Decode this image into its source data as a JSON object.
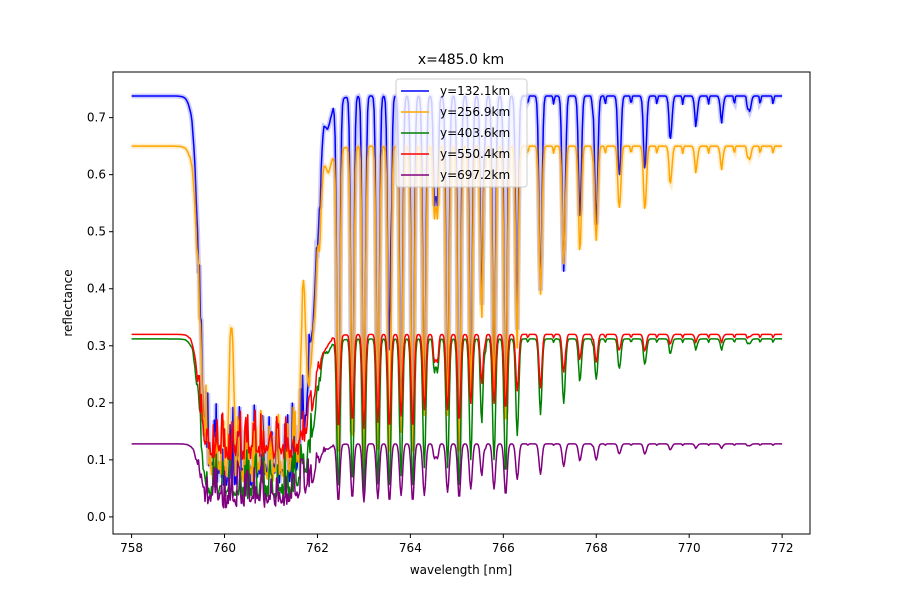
{
  "chart_data": {
    "type": "line",
    "title": "x=485.0 km",
    "xlabel": "wavelength [nm]",
    "ylabel": "reflectance",
    "xlim": [
      757.6,
      772.6
    ],
    "ylim": [
      -0.03,
      0.78
    ],
    "xticks": [
      758,
      760,
      762,
      764,
      766,
      768,
      770,
      772
    ],
    "yticks": [
      0.0,
      0.1,
      0.2,
      0.3,
      0.4,
      0.5,
      0.6,
      0.7
    ],
    "grid": false,
    "legend_position": "top-center",
    "x_start": 758.0,
    "x_end": 772.0,
    "band_start": 759.45,
    "band_end": 761.6,
    "series": [
      {
        "name": "y=132.1km",
        "color": "#0000ff",
        "continuum": 0.738,
        "band_floor": 0.055,
        "peaks": [
          {
            "x": 762.15,
            "y": 0.69
          },
          {
            "x": 763.1,
            "y": 0.5
          },
          {
            "x": 763.6,
            "y": 0.52
          },
          {
            "x": 764.55,
            "y": 0.62
          },
          {
            "x": 765.6,
            "y": 0.66
          },
          {
            "x": 766.4,
            "y": 0.73
          }
        ],
        "lines": [
          {
            "x": 762.45,
            "depth": 0.95
          },
          {
            "x": 762.75,
            "depth": 0.9
          },
          {
            "x": 763.0,
            "depth": 0.95
          },
          {
            "x": 763.3,
            "depth": 0.9
          },
          {
            "x": 763.55,
            "depth": 0.95
          },
          {
            "x": 763.8,
            "depth": 0.85
          },
          {
            "x": 764.05,
            "depth": 0.95
          },
          {
            "x": 764.3,
            "depth": 0.8
          },
          {
            "x": 764.55,
            "depth": 0.95
          },
          {
            "x": 764.8,
            "depth": 0.8
          },
          {
            "x": 765.05,
            "depth": 0.95
          },
          {
            "x": 765.3,
            "depth": 0.75
          },
          {
            "x": 765.55,
            "depth": 0.9
          },
          {
            "x": 765.8,
            "depth": 0.75
          },
          {
            "x": 766.05,
            "depth": 0.85
          },
          {
            "x": 766.3,
            "depth": 0.6
          },
          {
            "x": 766.8,
            "depth": 0.48
          },
          {
            "x": 767.3,
            "depth": 0.45
          },
          {
            "x": 767.65,
            "depth": 0.3
          },
          {
            "x": 768.0,
            "depth": 0.33
          },
          {
            "x": 768.5,
            "depth": 0.2
          },
          {
            "x": 769.05,
            "depth": 0.18
          },
          {
            "x": 769.6,
            "depth": 0.1
          },
          {
            "x": 770.15,
            "depth": 0.06
          },
          {
            "x": 770.7,
            "depth": 0.05
          },
          {
            "x": 771.3,
            "depth": 0.04
          }
        ]
      },
      {
        "name": "y=256.9km",
        "color": "#ffa500",
        "continuum": 0.65,
        "band_floor": 0.06,
        "peaks": [
          {
            "x": 760.15,
            "y": 0.36
          },
          {
            "x": 761.7,
            "y": 0.44
          },
          {
            "x": 762.15,
            "y": 0.62
          },
          {
            "x": 763.1,
            "y": 0.49
          },
          {
            "x": 764.55,
            "y": 0.6
          },
          {
            "x": 765.6,
            "y": 0.62
          },
          {
            "x": 766.4,
            "y": 0.64
          }
        ],
        "lines": [
          {
            "x": 762.45,
            "depth": 0.95
          },
          {
            "x": 762.75,
            "depth": 0.9
          },
          {
            "x": 763.0,
            "depth": 0.95
          },
          {
            "x": 763.3,
            "depth": 0.9
          },
          {
            "x": 763.55,
            "depth": 0.95
          },
          {
            "x": 763.8,
            "depth": 0.85
          },
          {
            "x": 764.05,
            "depth": 0.95
          },
          {
            "x": 764.3,
            "depth": 0.8
          },
          {
            "x": 764.55,
            "depth": 0.95
          },
          {
            "x": 764.8,
            "depth": 0.8
          },
          {
            "x": 765.05,
            "depth": 0.95
          },
          {
            "x": 765.3,
            "depth": 0.75
          },
          {
            "x": 765.55,
            "depth": 0.9
          },
          {
            "x": 765.8,
            "depth": 0.75
          },
          {
            "x": 766.05,
            "depth": 0.85
          },
          {
            "x": 766.3,
            "depth": 0.6
          },
          {
            "x": 766.8,
            "depth": 0.42
          },
          {
            "x": 767.3,
            "depth": 0.35
          },
          {
            "x": 767.65,
            "depth": 0.3
          },
          {
            "x": 768.0,
            "depth": 0.28
          },
          {
            "x": 768.5,
            "depth": 0.18
          },
          {
            "x": 769.05,
            "depth": 0.18
          },
          {
            "x": 769.6,
            "depth": 0.1
          },
          {
            "x": 770.15,
            "depth": 0.06
          },
          {
            "x": 770.7,
            "depth": 0.05
          },
          {
            "x": 771.3,
            "depth": 0.04
          }
        ]
      },
      {
        "name": "y=403.6km",
        "color": "#008000",
        "continuum": 0.312,
        "band_floor": 0.03,
        "peaks": [
          {
            "x": 762.15,
            "y": 0.29
          },
          {
            "x": 764.55,
            "y": 0.29
          },
          {
            "x": 765.6,
            "y": 0.29
          }
        ],
        "lines": [
          {
            "x": 762.45,
            "depth": 0.95
          },
          {
            "x": 762.75,
            "depth": 0.9
          },
          {
            "x": 763.0,
            "depth": 0.95
          },
          {
            "x": 763.3,
            "depth": 0.9
          },
          {
            "x": 763.55,
            "depth": 0.95
          },
          {
            "x": 763.8,
            "depth": 0.85
          },
          {
            "x": 764.05,
            "depth": 0.95
          },
          {
            "x": 764.3,
            "depth": 0.8
          },
          {
            "x": 764.55,
            "depth": 0.95
          },
          {
            "x": 764.8,
            "depth": 0.8
          },
          {
            "x": 765.05,
            "depth": 0.95
          },
          {
            "x": 765.3,
            "depth": 0.75
          },
          {
            "x": 765.55,
            "depth": 0.9
          },
          {
            "x": 765.8,
            "depth": 0.75
          },
          {
            "x": 766.05,
            "depth": 0.85
          },
          {
            "x": 766.3,
            "depth": 0.6
          },
          {
            "x": 766.8,
            "depth": 0.45
          },
          {
            "x": 767.3,
            "depth": 0.4
          },
          {
            "x": 767.65,
            "depth": 0.25
          },
          {
            "x": 768.0,
            "depth": 0.25
          },
          {
            "x": 768.5,
            "depth": 0.18
          },
          {
            "x": 769.05,
            "depth": 0.15
          },
          {
            "x": 769.6,
            "depth": 0.08
          },
          {
            "x": 770.15,
            "depth": 0.05
          },
          {
            "x": 770.7,
            "depth": 0.05
          },
          {
            "x": 771.3,
            "depth": 0.03
          }
        ]
      },
      {
        "name": "y=550.4km",
        "color": "#ff0000",
        "continuum": 0.32,
        "band_floor": 0.1,
        "peaks": [
          {
            "x": 762.15,
            "y": 0.29
          },
          {
            "x": 764.55,
            "y": 0.29
          },
          {
            "x": 765.6,
            "y": 0.3
          }
        ],
        "lines": [
          {
            "x": 762.45,
            "depth": 0.75
          },
          {
            "x": 762.75,
            "depth": 0.7
          },
          {
            "x": 763.0,
            "depth": 0.75
          },
          {
            "x": 763.3,
            "depth": 0.7
          },
          {
            "x": 763.55,
            "depth": 0.75
          },
          {
            "x": 763.8,
            "depth": 0.65
          },
          {
            "x": 764.05,
            "depth": 0.75
          },
          {
            "x": 764.3,
            "depth": 0.6
          },
          {
            "x": 764.55,
            "depth": 0.75
          },
          {
            "x": 764.8,
            "depth": 0.6
          },
          {
            "x": 765.05,
            "depth": 0.7
          },
          {
            "x": 765.3,
            "depth": 0.55
          },
          {
            "x": 765.55,
            "depth": 0.65
          },
          {
            "x": 765.8,
            "depth": 0.55
          },
          {
            "x": 766.05,
            "depth": 0.6
          },
          {
            "x": 766.3,
            "depth": 0.45
          },
          {
            "x": 766.8,
            "depth": 0.4
          },
          {
            "x": 767.3,
            "depth": 0.3
          },
          {
            "x": 767.65,
            "depth": 0.18
          },
          {
            "x": 768.0,
            "depth": 0.22
          },
          {
            "x": 768.5,
            "depth": 0.12
          },
          {
            "x": 769.05,
            "depth": 0.12
          },
          {
            "x": 769.6,
            "depth": 0.06
          },
          {
            "x": 770.15,
            "depth": 0.04
          },
          {
            "x": 770.7,
            "depth": 0.04
          },
          {
            "x": 771.3,
            "depth": 0.02
          }
        ]
      },
      {
        "name": "y=697.2km",
        "color": "#800080",
        "continuum": 0.128,
        "band_floor": 0.015,
        "peaks": [
          {
            "x": 762.15,
            "y": 0.115
          },
          {
            "x": 764.55,
            "y": 0.115
          },
          {
            "x": 765.6,
            "y": 0.12
          }
        ],
        "lines": [
          {
            "x": 762.45,
            "depth": 0.9
          },
          {
            "x": 762.75,
            "depth": 0.85
          },
          {
            "x": 763.0,
            "depth": 0.9
          },
          {
            "x": 763.3,
            "depth": 0.85
          },
          {
            "x": 763.55,
            "depth": 0.9
          },
          {
            "x": 763.8,
            "depth": 0.8
          },
          {
            "x": 764.05,
            "depth": 0.9
          },
          {
            "x": 764.3,
            "depth": 0.8
          },
          {
            "x": 764.55,
            "depth": 0.9
          },
          {
            "x": 764.8,
            "depth": 0.75
          },
          {
            "x": 765.05,
            "depth": 0.85
          },
          {
            "x": 765.3,
            "depth": 0.7
          },
          {
            "x": 765.55,
            "depth": 0.85
          },
          {
            "x": 765.8,
            "depth": 0.7
          },
          {
            "x": 766.05,
            "depth": 0.8
          },
          {
            "x": 766.3,
            "depth": 0.55
          },
          {
            "x": 766.8,
            "depth": 0.45
          },
          {
            "x": 767.3,
            "depth": 0.35
          },
          {
            "x": 767.65,
            "depth": 0.25
          },
          {
            "x": 768.0,
            "depth": 0.25
          },
          {
            "x": 768.5,
            "depth": 0.15
          },
          {
            "x": 769.05,
            "depth": 0.15
          },
          {
            "x": 769.6,
            "depth": 0.08
          },
          {
            "x": 770.15,
            "depth": 0.05
          },
          {
            "x": 770.7,
            "depth": 0.05
          },
          {
            "x": 771.3,
            "depth": 0.03
          }
        ]
      }
    ]
  }
}
